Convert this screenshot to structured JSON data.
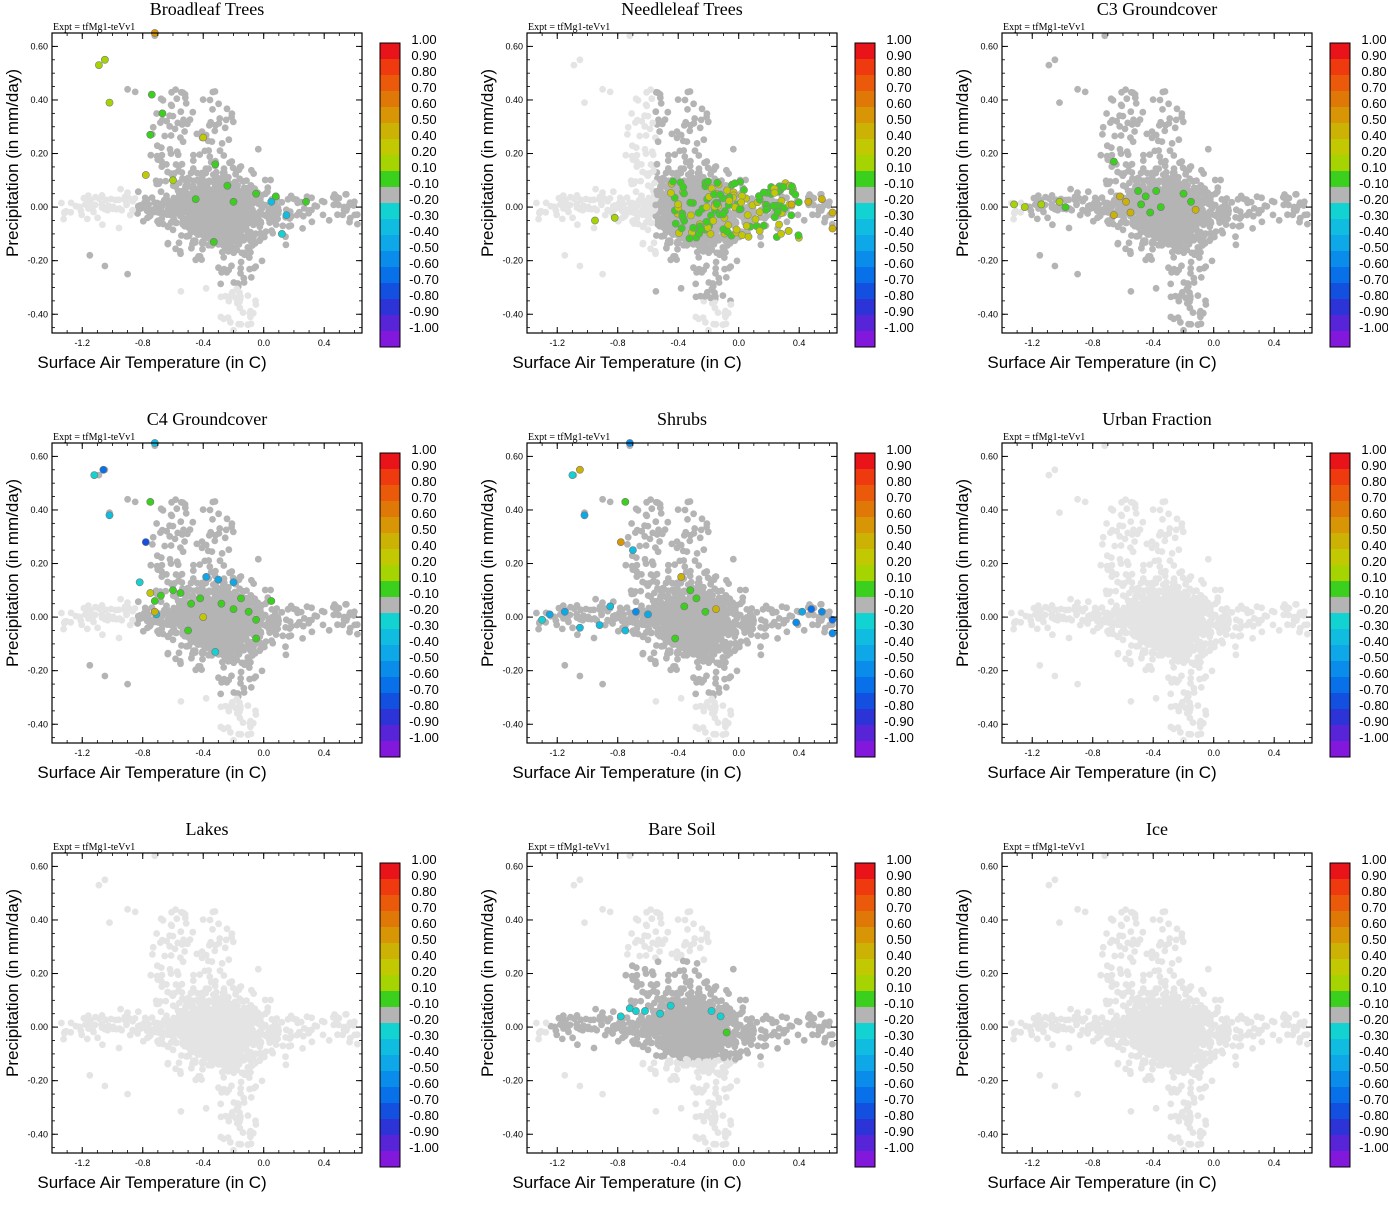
{
  "figure": {
    "expt_label": "Expt = tfMg1-teVv1",
    "xlabel": "Surface Air Temperature (in C)",
    "ylabel": "Precipitation (in mm/day)",
    "x_ticks": [
      "-1.2",
      "-0.8",
      "-0.4",
      "0.0",
      "0.4"
    ],
    "y_ticks": [
      "0.60",
      "0.40",
      "0.20",
      "0.00",
      "-0.20",
      "-0.40"
    ],
    "colorbar_labels": [
      "1.00",
      "0.90",
      "0.80",
      "0.70",
      "0.60",
      "0.50",
      "0.40",
      "0.20",
      "0.10",
      "-0.10",
      "-0.20",
      "-0.30",
      "-0.40",
      "-0.50",
      "-0.60",
      "-0.70",
      "-0.80",
      "-0.90",
      "-1.00"
    ],
    "colorbar_colors": [
      "#e8141a",
      "#ee3a0e",
      "#ea5a0a",
      "#e07808",
      "#d89606",
      "#ccb204",
      "#c2c802",
      "#a6d402",
      "#3cd01e",
      "#b4b4b4",
      "#12d2d2",
      "#10bde0",
      "#0ea8e8",
      "#0a8cea",
      "#0870e8",
      "#1450e0",
      "#2c34d8",
      "#5824d8",
      "#8218dc"
    ],
    "colors": {
      "unmasked_point": "#e4e4e4",
      "near_zero_point": "#b4b4b4",
      "frame": "#000000"
    }
  },
  "chart_data": [
    {
      "type": "scatter",
      "title": "Broadleaf Trees",
      "xlabel": "Surface Air Temperature (in C)",
      "ylabel": "Precipitation (in mm/day)",
      "xlim": [
        -1.4,
        0.65
      ],
      "ylim": [
        -0.47,
        0.65
      ],
      "mode": "broadleaf",
      "highlights": [
        {
          "x": -1.09,
          "y": 0.53,
          "c": 0.3
        },
        {
          "x": -1.05,
          "y": 0.55,
          "c": 0.3
        },
        {
          "x": -1.02,
          "y": 0.39,
          "c": 0.3
        },
        {
          "x": -0.74,
          "y": 0.42,
          "c": 0.15
        },
        {
          "x": -0.75,
          "y": 0.27,
          "c": 0.15
        },
        {
          "x": -0.67,
          "y": 0.35,
          "c": 0.15
        },
        {
          "x": -0.6,
          "y": 0.1,
          "c": 0.3
        },
        {
          "x": -0.4,
          "y": 0.26,
          "c": 0.4
        },
        {
          "x": -0.32,
          "y": 0.16,
          "c": 0.15
        },
        {
          "x": -0.24,
          "y": 0.08,
          "c": 0.15
        },
        {
          "x": -0.78,
          "y": 0.12,
          "c": 0.4
        },
        {
          "x": -0.45,
          "y": 0.03,
          "c": 0.15
        },
        {
          "x": -0.2,
          "y": 0.02,
          "c": 0.15
        },
        {
          "x": -0.05,
          "y": 0.05,
          "c": 0.15
        },
        {
          "x": 0.08,
          "y": 0.04,
          "c": 0.15
        },
        {
          "x": 0.28,
          "y": 0.02,
          "c": 0.15
        },
        {
          "x": 0.15,
          "y": -0.03,
          "c": -0.3
        },
        {
          "x": 0.12,
          "y": -0.1,
          "c": -0.2
        },
        {
          "x": -0.33,
          "y": -0.13,
          "c": 0.15
        },
        {
          "x": 0.05,
          "y": 0.02,
          "c": -0.3
        },
        {
          "x": -0.72,
          "y": 0.65,
          "c": 0.6
        }
      ]
    },
    {
      "type": "scatter",
      "title": "Needleleaf Trees",
      "xlabel": "Surface Air Temperature (in C)",
      "ylabel": "Precipitation (in mm/day)",
      "xlim": [
        -1.4,
        0.65
      ],
      "ylim": [
        -0.47,
        0.65
      ],
      "mode": "needleleaf",
      "highlights": [
        {
          "x": -0.95,
          "y": -0.05,
          "c": 0.3
        },
        {
          "x": -0.82,
          "y": -0.04,
          "c": 0.3
        },
        {
          "x": 0.35,
          "y": 0.01,
          "c": 0.45
        },
        {
          "x": 0.46,
          "y": 0.02,
          "c": 0.45
        },
        {
          "x": 0.55,
          "y": 0.03,
          "c": 0.45
        },
        {
          "x": 0.62,
          "y": -0.02,
          "c": 0.45
        },
        {
          "x": 0.62,
          "y": -0.08,
          "c": 0.45
        }
      ]
    },
    {
      "type": "scatter",
      "title": "C3 Groundcover",
      "xlabel": "Surface Air Temperature (in C)",
      "ylabel": "Precipitation (in mm/day)",
      "xlim": [
        -1.4,
        0.65
      ],
      "ylim": [
        -0.47,
        0.65
      ],
      "mode": "gray",
      "highlights": [
        {
          "x": -1.32,
          "y": 0.01,
          "c": 0.3
        },
        {
          "x": -1.25,
          "y": 0.0,
          "c": 0.3
        },
        {
          "x": -1.14,
          "y": 0.01,
          "c": 0.3
        },
        {
          "x": -1.02,
          "y": 0.02,
          "c": 0.3
        },
        {
          "x": -0.98,
          "y": 0.0,
          "c": 0.15
        },
        {
          "x": -0.66,
          "y": 0.17,
          "c": 0.15
        },
        {
          "x": -0.62,
          "y": 0.04,
          "c": 0.45
        },
        {
          "x": -0.58,
          "y": 0.02,
          "c": 0.45
        },
        {
          "x": -0.55,
          "y": -0.02,
          "c": 0.45
        },
        {
          "x": -0.5,
          "y": 0.06,
          "c": 0.15
        },
        {
          "x": -0.48,
          "y": 0.01,
          "c": 0.15
        },
        {
          "x": -0.42,
          "y": -0.02,
          "c": 0.15
        },
        {
          "x": -0.38,
          "y": 0.06,
          "c": 0.15
        },
        {
          "x": -0.35,
          "y": 0.0,
          "c": 0.15
        },
        {
          "x": -0.2,
          "y": 0.05,
          "c": 0.15
        },
        {
          "x": -0.15,
          "y": 0.02,
          "c": 0.15
        },
        {
          "x": -0.12,
          "y": -0.01,
          "c": 0.45
        },
        {
          "x": -0.66,
          "y": -0.03,
          "c": 0.45
        },
        {
          "x": -0.45,
          "y": 0.04,
          "c": 0.15
        }
      ]
    },
    {
      "type": "scatter",
      "title": "C4 Groundcover",
      "xlabel": "Surface Air Temperature (in C)",
      "ylabel": "Precipitation (in mm/day)",
      "xlim": [
        -1.4,
        0.65
      ],
      "ylim": [
        -0.47,
        0.65
      ],
      "mode": "broadleaf",
      "highlights": [
        {
          "x": -1.12,
          "y": 0.53,
          "c": -0.25
        },
        {
          "x": -1.06,
          "y": 0.55,
          "c": -0.55
        },
        {
          "x": -1.02,
          "y": 0.38,
          "c": -0.3
        },
        {
          "x": -0.75,
          "y": 0.43,
          "c": 0.15
        },
        {
          "x": -0.72,
          "y": 0.65,
          "c": -0.3
        },
        {
          "x": -0.78,
          "y": 0.28,
          "c": -0.65
        },
        {
          "x": -0.82,
          "y": 0.13,
          "c": -0.25
        },
        {
          "x": -0.75,
          "y": 0.09,
          "c": 0.4
        },
        {
          "x": -0.72,
          "y": 0.06,
          "c": 0.15
        },
        {
          "x": -0.68,
          "y": 0.08,
          "c": 0.15
        },
        {
          "x": -0.6,
          "y": 0.1,
          "c": 0.15
        },
        {
          "x": -0.55,
          "y": 0.09,
          "c": 0.15
        },
        {
          "x": -0.48,
          "y": 0.05,
          "c": 0.15
        },
        {
          "x": -0.42,
          "y": 0.07,
          "c": 0.15
        },
        {
          "x": -0.38,
          "y": 0.15,
          "c": -0.45
        },
        {
          "x": -0.3,
          "y": 0.14,
          "c": -0.45
        },
        {
          "x": -0.2,
          "y": 0.13,
          "c": -0.45
        },
        {
          "x": -0.28,
          "y": 0.05,
          "c": 0.15
        },
        {
          "x": -0.2,
          "y": 0.03,
          "c": 0.15
        },
        {
          "x": -0.15,
          "y": 0.07,
          "c": 0.15
        },
        {
          "x": -0.1,
          "y": 0.02,
          "c": 0.15
        },
        {
          "x": -0.05,
          "y": -0.01,
          "c": 0.15
        },
        {
          "x": 0.05,
          "y": 0.06,
          "c": 0.15
        },
        {
          "x": -0.32,
          "y": -0.13,
          "c": -0.25
        },
        {
          "x": -0.4,
          "y": 0.0,
          "c": 0.4
        },
        {
          "x": -0.5,
          "y": -0.05,
          "c": 0.15
        },
        {
          "x": -0.71,
          "y": 0.01,
          "c": -0.3
        },
        {
          "x": -0.72,
          "y": 0.02,
          "c": 0.45
        },
        {
          "x": -0.05,
          "y": -0.08,
          "c": 0.15
        }
      ]
    },
    {
      "type": "scatter",
      "title": "Shrubs",
      "xlabel": "Surface Air Temperature (in C)",
      "ylabel": "Precipitation (in mm/day)",
      "xlim": [
        -1.4,
        0.65
      ],
      "ylim": [
        -0.47,
        0.65
      ],
      "mode": "shrubs",
      "highlights": [
        {
          "x": -1.1,
          "y": 0.53,
          "c": -0.25
        },
        {
          "x": -1.05,
          "y": 0.55,
          "c": 0.45
        },
        {
          "x": -1.02,
          "y": 0.38,
          "c": -0.4
        },
        {
          "x": -0.75,
          "y": 0.43,
          "c": 0.15
        },
        {
          "x": -0.72,
          "y": 0.65,
          "c": -0.5
        },
        {
          "x": -0.78,
          "y": 0.28,
          "c": 0.6
        },
        {
          "x": -0.7,
          "y": 0.25,
          "c": -0.3
        },
        {
          "x": -0.38,
          "y": 0.15,
          "c": 0.45
        },
        {
          "x": -0.32,
          "y": 0.1,
          "c": 0.15
        },
        {
          "x": -0.28,
          "y": 0.07,
          "c": 0.15
        },
        {
          "x": -0.36,
          "y": 0.04,
          "c": 0.15
        },
        {
          "x": -0.22,
          "y": 0.02,
          "c": 0.15
        },
        {
          "x": -0.15,
          "y": 0.03,
          "c": 0.45
        },
        {
          "x": -0.42,
          "y": -0.08,
          "c": 0.15
        },
        {
          "x": -0.6,
          "y": 0.01,
          "c": -0.4
        },
        {
          "x": -1.25,
          "y": 0.01,
          "c": -0.4
        },
        {
          "x": -1.3,
          "y": -0.01,
          "c": -0.25
        },
        {
          "x": -1.15,
          "y": 0.02,
          "c": -0.4
        },
        {
          "x": -1.05,
          "y": -0.04,
          "c": -0.3
        },
        {
          "x": -0.92,
          "y": -0.03,
          "c": -0.3
        },
        {
          "x": -0.85,
          "y": 0.04,
          "c": -0.3
        },
        {
          "x": -0.75,
          "y": -0.05,
          "c": -0.3
        },
        {
          "x": -0.68,
          "y": 0.02,
          "c": -0.5
        },
        {
          "x": 0.62,
          "y": -0.01,
          "c": -0.55
        },
        {
          "x": 0.62,
          "y": -0.06,
          "c": -0.5
        },
        {
          "x": 0.55,
          "y": 0.02,
          "c": -0.5
        },
        {
          "x": 0.48,
          "y": 0.03,
          "c": -0.55
        },
        {
          "x": 0.38,
          "y": -0.02,
          "c": -0.5
        },
        {
          "x": 0.42,
          "y": 0.02,
          "c": -0.4
        }
      ]
    },
    {
      "type": "scatter",
      "title": "Urban Fraction",
      "xlabel": "Surface Air Temperature (in C)",
      "ylabel": "Precipitation (in mm/day)",
      "xlim": [
        -1.4,
        0.65
      ],
      "ylim": [
        -0.47,
        0.65
      ],
      "mode": "light",
      "highlights": []
    },
    {
      "type": "scatter",
      "title": "Lakes",
      "xlabel": "Surface Air Temperature (in C)",
      "ylabel": "Precipitation (in mm/day)",
      "xlim": [
        -1.4,
        0.65
      ],
      "ylim": [
        -0.47,
        0.65
      ],
      "mode": "light",
      "highlights": []
    },
    {
      "type": "scatter",
      "title": "Bare Soil",
      "xlabel": "Surface Air Temperature (in C)",
      "ylabel": "Precipitation (in mm/day)",
      "xlim": [
        -1.4,
        0.65
      ],
      "ylim": [
        -0.47,
        0.65
      ],
      "mode": "baresoil",
      "highlights": [
        {
          "x": -0.72,
          "y": 0.07,
          "c": -0.2
        },
        {
          "x": -0.68,
          "y": 0.06,
          "c": -0.25
        },
        {
          "x": -0.62,
          "y": 0.06,
          "c": -0.25
        },
        {
          "x": -0.78,
          "y": 0.04,
          "c": -0.2
        },
        {
          "x": -0.52,
          "y": 0.05,
          "c": -0.2
        },
        {
          "x": -0.45,
          "y": 0.08,
          "c": -0.2
        },
        {
          "x": -0.18,
          "y": 0.06,
          "c": -0.2
        },
        {
          "x": -0.12,
          "y": 0.04,
          "c": -0.2
        },
        {
          "x": -0.08,
          "y": -0.02,
          "c": 0.15
        }
      ]
    },
    {
      "type": "scatter",
      "title": "Ice",
      "xlabel": "Surface Air Temperature (in C)",
      "ylabel": "Precipitation (in mm/day)",
      "xlim": [
        -1.4,
        0.65
      ],
      "ylim": [
        -0.47,
        0.65
      ],
      "mode": "light",
      "highlights": []
    }
  ]
}
